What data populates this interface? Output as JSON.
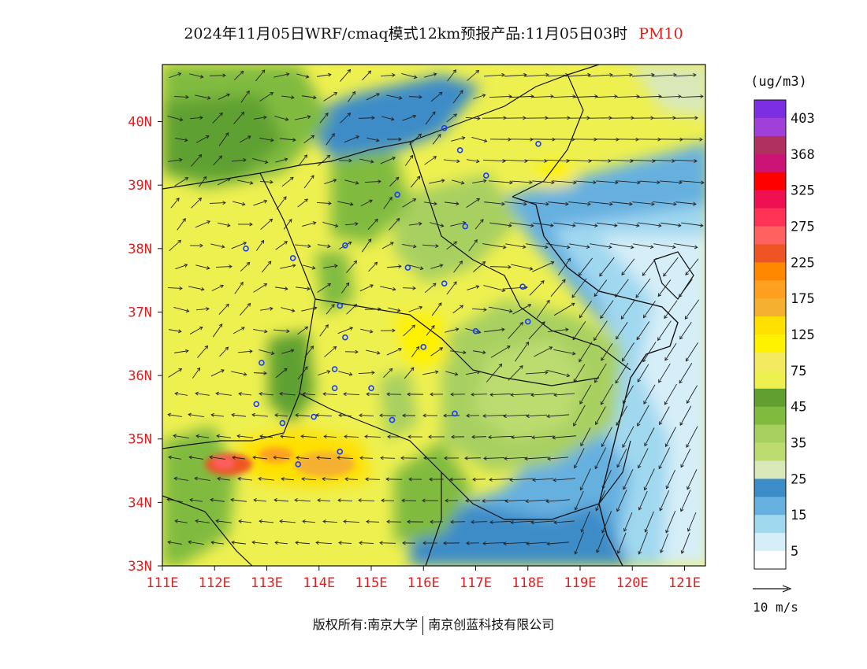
{
  "title": {
    "text": "2024年11月05日WRF/cmaq模式12km预报产品:11月05日03时",
    "variable": "PM10"
  },
  "axes": {
    "lat_labels": [
      "33N",
      "34N",
      "35N",
      "36N",
      "37N",
      "38N",
      "39N",
      "40N"
    ],
    "lon_labels": [
      "111E",
      "112E",
      "113E",
      "114E",
      "115E",
      "116E",
      "117E",
      "118E",
      "119E",
      "120E",
      "121E"
    ],
    "lon_range": [
      111,
      121.4
    ],
    "lat_range": [
      33,
      40.9
    ]
  },
  "colorbar": {
    "unit": "(ug/m3)",
    "labels": [
      "403",
      "368",
      "325",
      "275",
      "225",
      "175",
      "125",
      "75",
      "45",
      "35",
      "25",
      "15",
      "5"
    ],
    "colors_top_to_bottom": [
      "#7b2fe0",
      "#a040d8",
      "#b03060",
      "#cc1477",
      "#ff0000",
      "#ee1050",
      "#ff3355",
      "#ff6060",
      "#ee5522",
      "#ff8800",
      "#ffa020",
      "#f5b030",
      "#ffe000",
      "#fff200",
      "#f3ea60",
      "#eef050",
      "#5fa030",
      "#80bb40",
      "#a8d060",
      "#bcdc70",
      "#d8e8b8",
      "#3c8cc8",
      "#66b0e0",
      "#a0d8f0",
      "#d6eef8",
      "#ffffff"
    ]
  },
  "wind_reference": {
    "label": "10 m/s"
  },
  "footer": {
    "left": "版权所有:南京大学",
    "right": "南京创蓝科技有限公司"
  },
  "colors": {
    "accent_red": "#e02020",
    "background": "#ffffff"
  },
  "map": {
    "type": "pm10-concentration-map",
    "cities": [
      [
        112.6,
        38.0
      ],
      [
        113.5,
        37.85
      ],
      [
        114.5,
        38.05
      ],
      [
        114.4,
        37.1
      ],
      [
        114.5,
        36.6
      ],
      [
        114.3,
        36.1
      ],
      [
        112.9,
        36.2
      ],
      [
        113.3,
        35.25
      ],
      [
        112.8,
        35.55
      ],
      [
        113.9,
        35.35
      ],
      [
        114.3,
        35.8
      ],
      [
        115.0,
        35.8
      ],
      [
        114.4,
        34.8
      ],
      [
        113.6,
        34.6
      ],
      [
        115.4,
        35.3
      ],
      [
        116.0,
        36.45
      ],
      [
        115.7,
        37.7
      ],
      [
        116.4,
        37.45
      ],
      [
        116.8,
        38.35
      ],
      [
        115.5,
        38.85
      ],
      [
        116.4,
        39.9
      ],
      [
        117.2,
        39.15
      ],
      [
        116.7,
        39.55
      ],
      [
        118.2,
        39.65
      ],
      [
        117.9,
        37.4
      ],
      [
        118.0,
        36.85
      ],
      [
        117.0,
        36.7
      ],
      [
        116.6,
        35.4
      ]
    ]
  }
}
